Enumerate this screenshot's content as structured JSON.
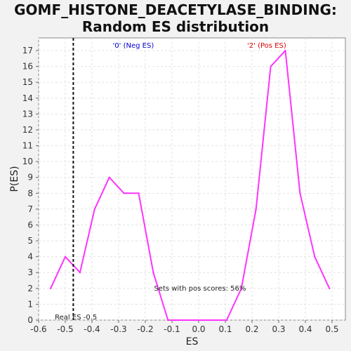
{
  "chart_data": {
    "type": "line",
    "title_line1": "GOMF_HISTONE_DEACETYLASE_BINDING:",
    "title_line2": "Random ES distribution",
    "xlabel": "ES",
    "ylabel": "P(ES)",
    "xlim": [
      -0.6,
      0.55
    ],
    "ylim": [
      0,
      17.8
    ],
    "xticks": [
      "-0.6",
      "-0.5",
      "-0.4",
      "-0.3",
      "-0.2",
      "-0.1",
      "0.0",
      "0.1",
      "0.2",
      "0.3",
      "0.4",
      "0.5"
    ],
    "xtick_values": [
      -0.6,
      -0.5,
      -0.4,
      -0.3,
      -0.2,
      -0.1,
      0.0,
      0.1,
      0.2,
      0.3,
      0.4,
      0.5
    ],
    "yticks": [
      "0",
      "1",
      "2",
      "3",
      "4",
      "5",
      "6",
      "7",
      "8",
      "9",
      "10",
      "11",
      "12",
      "13",
      "14",
      "15",
      "16",
      "17"
    ],
    "ytick_values": [
      0,
      1,
      2,
      3,
      4,
      5,
      6,
      7,
      8,
      9,
      10,
      11,
      12,
      13,
      14,
      15,
      16,
      17
    ],
    "grid": true,
    "series": [
      {
        "color": "#ff33ff",
        "x": [
          -0.555,
          -0.5,
          -0.445,
          -0.39,
          -0.335,
          -0.28,
          -0.225,
          -0.17,
          -0.115,
          -0.06,
          -0.005,
          0.05,
          0.105,
          0.16,
          0.215,
          0.27,
          0.325,
          0.38,
          0.435,
          0.49
        ],
        "y": [
          2,
          4,
          3,
          7,
          9,
          8,
          8,
          3,
          0,
          0,
          0,
          0,
          0,
          2,
          7,
          16,
          17,
          8,
          4,
          2
        ]
      }
    ],
    "real_es": {
      "value": -0.47,
      "label": "Real ES -0.5"
    },
    "annotations": {
      "neg_label": "'0' (Neg ES)",
      "neg_color": "#0000cc",
      "pos_label": "'2' (Pos ES)",
      "pos_color": "#dd0000",
      "pos_scores_label": "Sets with pos scores: 56%"
    }
  }
}
